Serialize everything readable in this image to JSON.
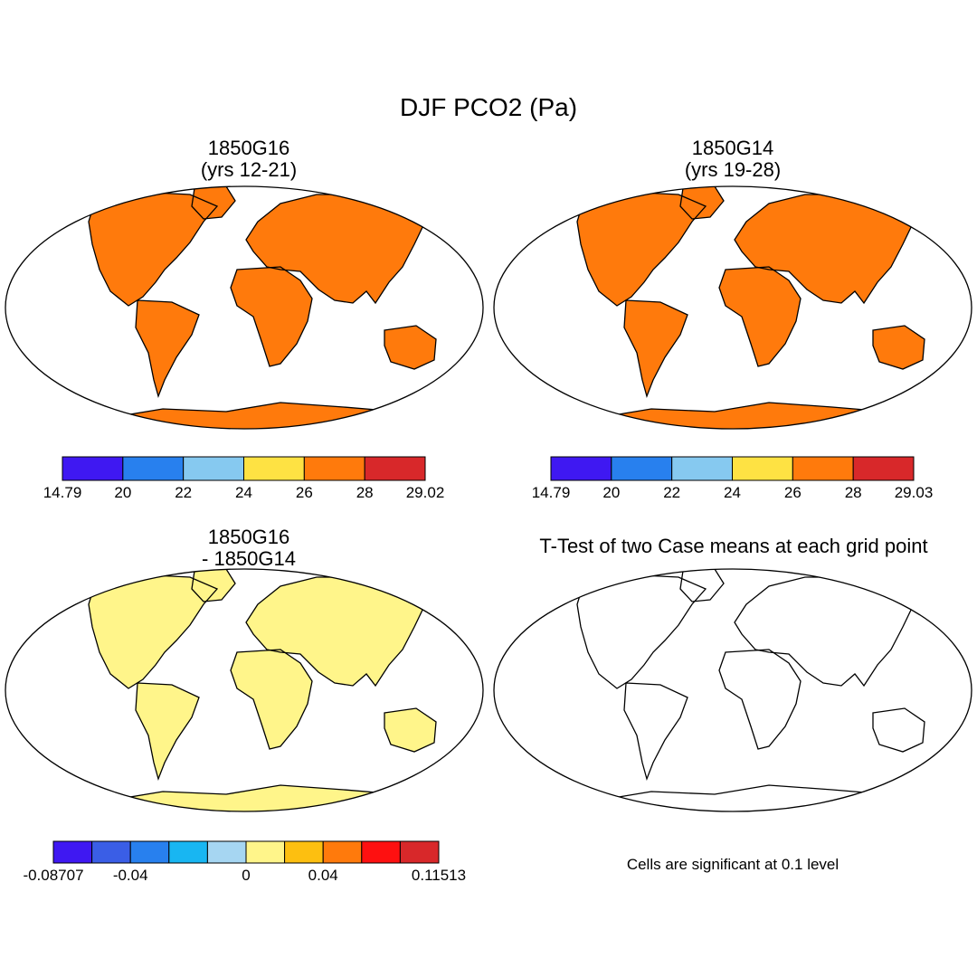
{
  "title": "DJF PCO2 (Pa)",
  "panels": [
    {
      "id": "g16",
      "title_line1": "1850G16",
      "title_line2": "(yrs 12-21)",
      "colors": [
        "#3f18f2",
        "#2880ee",
        "#86c9f0",
        "#fee243",
        "#ff7a0c",
        "#d8282a"
      ],
      "tick_labels": [
        "14.79",
        "20",
        "22",
        "24",
        "26",
        "28",
        "29.02"
      ]
    },
    {
      "id": "g14",
      "title_line1": "1850G14",
      "title_line2": "(yrs 19-28)",
      "colors": [
        "#3f18f2",
        "#2880ee",
        "#86c9f0",
        "#fee243",
        "#ff7a0c",
        "#d8282a"
      ],
      "tick_labels": [
        "14.79",
        "20",
        "22",
        "24",
        "26",
        "28",
        "29.03"
      ]
    },
    {
      "id": "diff",
      "title_line1": "1850G16",
      "title_line2": "- 1850G14",
      "colors": [
        "#3f18f2",
        "#3a5ee6",
        "#2880ee",
        "#18b6f2",
        "#a6d6f2",
        "#fff58a",
        "#fdbf10",
        "#ff7a0c",
        "#fe1010",
        "#d8282a"
      ],
      "tick_labels": [
        "-0.08707",
        "-0.04",
        "0",
        "0.04",
        "0.11513"
      ],
      "tick_positions": [
        0,
        2,
        5,
        7,
        10
      ]
    },
    {
      "id": "ttest",
      "title_line1": "T-Test of two Case means at each grid point",
      "significance_color": "#ff0000",
      "note": "Cells are significant at 0.1 level"
    }
  ]
}
